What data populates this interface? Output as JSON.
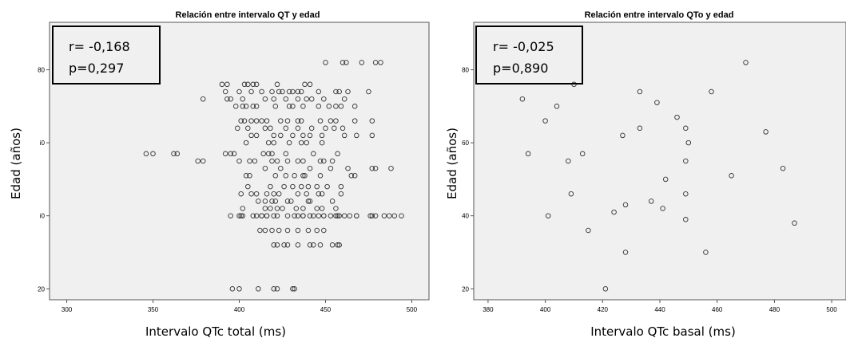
{
  "chart_data": [
    {
      "type": "scatter",
      "title": "Relación entre intervalo QT y edad",
      "xlabel": "Intervalo QTc total (ms)",
      "ylabel": "Edad (años)",
      "xlim": [
        290,
        510
      ],
      "ylim": [
        17,
        93
      ],
      "xticks": [
        300,
        350,
        400,
        450,
        500
      ],
      "yticks": [
        20,
        40,
        60,
        80
      ],
      "ytick_labels": [
        "20",
        "i0",
        "i0",
        "80"
      ],
      "grid": false,
      "annotation": {
        "r": "r= -0,168",
        "p": "p=0,297"
      },
      "points": [
        [
          471,
          82
        ],
        [
          479,
          82
        ],
        [
          482,
          82
        ],
        [
          460,
          82
        ],
        [
          462,
          82
        ],
        [
          450,
          82
        ],
        [
          390,
          76
        ],
        [
          393,
          76
        ],
        [
          403,
          76
        ],
        [
          405,
          76
        ],
        [
          408,
          76
        ],
        [
          410,
          76
        ],
        [
          422,
          76
        ],
        [
          438,
          76
        ],
        [
          441,
          76
        ],
        [
          392,
          74
        ],
        [
          400,
          74
        ],
        [
          407,
          74
        ],
        [
          413,
          74
        ],
        [
          419,
          74
        ],
        [
          423,
          74
        ],
        [
          425,
          74
        ],
        [
          429,
          74
        ],
        [
          431,
          74
        ],
        [
          434,
          74
        ],
        [
          436,
          74
        ],
        [
          446,
          74
        ],
        [
          456,
          74
        ],
        [
          458,
          74
        ],
        [
          463,
          74
        ],
        [
          475,
          74
        ],
        [
          379,
          72
        ],
        [
          393,
          72
        ],
        [
          395,
          72
        ],
        [
          402,
          72
        ],
        [
          415,
          72
        ],
        [
          420,
          72
        ],
        [
          427,
          72
        ],
        [
          434,
          72
        ],
        [
          439,
          72
        ],
        [
          442,
          72
        ],
        [
          449,
          72
        ],
        [
          461,
          72
        ],
        [
          398,
          70
        ],
        [
          402,
          70
        ],
        [
          404,
          70
        ],
        [
          408,
          70
        ],
        [
          410,
          70
        ],
        [
          421,
          70
        ],
        [
          429,
          70
        ],
        [
          431,
          70
        ],
        [
          437,
          70
        ],
        [
          446,
          70
        ],
        [
          452,
          70
        ],
        [
          456,
          70
        ],
        [
          459,
          70
        ],
        [
          467,
          70
        ],
        [
          401,
          66
        ],
        [
          403,
          66
        ],
        [
          407,
          66
        ],
        [
          410,
          66
        ],
        [
          413,
          66
        ],
        [
          416,
          66
        ],
        [
          424,
          66
        ],
        [
          428,
          66
        ],
        [
          434,
          66
        ],
        [
          436,
          66
        ],
        [
          447,
          66
        ],
        [
          453,
          66
        ],
        [
          456,
          66
        ],
        [
          467,
          66
        ],
        [
          477,
          66
        ],
        [
          399,
          64
        ],
        [
          405,
          64
        ],
        [
          415,
          64
        ],
        [
          418,
          64
        ],
        [
          427,
          64
        ],
        [
          434,
          64
        ],
        [
          442,
          64
        ],
        [
          450,
          64
        ],
        [
          455,
          64
        ],
        [
          460,
          64
        ],
        [
          407,
          62
        ],
        [
          410,
          62
        ],
        [
          420,
          62
        ],
        [
          424,
          62
        ],
        [
          431,
          62
        ],
        [
          437,
          62
        ],
        [
          441,
          62
        ],
        [
          448,
          62
        ],
        [
          461,
          62
        ],
        [
          468,
          62
        ],
        [
          477,
          62
        ],
        [
          404,
          60
        ],
        [
          417,
          60
        ],
        [
          420,
          60
        ],
        [
          429,
          60
        ],
        [
          436,
          60
        ],
        [
          439,
          60
        ],
        [
          448,
          60
        ],
        [
          346,
          57
        ],
        [
          350,
          57
        ],
        [
          362,
          57
        ],
        [
          364,
          57
        ],
        [
          392,
          57
        ],
        [
          395,
          57
        ],
        [
          397,
          57
        ],
        [
          414,
          57
        ],
        [
          417,
          57
        ],
        [
          419,
          57
        ],
        [
          427,
          57
        ],
        [
          443,
          57
        ],
        [
          457,
          57
        ],
        [
          376,
          55
        ],
        [
          379,
          55
        ],
        [
          400,
          55
        ],
        [
          406,
          55
        ],
        [
          409,
          55
        ],
        [
          419,
          55
        ],
        [
          422,
          55
        ],
        [
          428,
          55
        ],
        [
          434,
          55
        ],
        [
          437,
          55
        ],
        [
          447,
          55
        ],
        [
          449,
          55
        ],
        [
          454,
          55
        ],
        [
          415,
          53
        ],
        [
          424,
          53
        ],
        [
          441,
          53
        ],
        [
          453,
          53
        ],
        [
          463,
          53
        ],
        [
          477,
          53
        ],
        [
          479,
          53
        ],
        [
          488,
          53
        ],
        [
          404,
          51
        ],
        [
          406,
          51
        ],
        [
          421,
          51
        ],
        [
          427,
          51
        ],
        [
          432,
          51
        ],
        [
          437,
          51
        ],
        [
          438,
          51
        ],
        [
          447,
          51
        ],
        [
          465,
          51
        ],
        [
          467,
          51
        ],
        [
          405,
          48
        ],
        [
          418,
          48
        ],
        [
          426,
          48
        ],
        [
          431,
          48
        ],
        [
          436,
          48
        ],
        [
          440,
          48
        ],
        [
          445,
          48
        ],
        [
          451,
          48
        ],
        [
          459,
          48
        ],
        [
          401,
          46
        ],
        [
          407,
          46
        ],
        [
          410,
          46
        ],
        [
          416,
          46
        ],
        [
          420,
          46
        ],
        [
          423,
          46
        ],
        [
          434,
          46
        ],
        [
          439,
          46
        ],
        [
          446,
          46
        ],
        [
          448,
          46
        ],
        [
          459,
          46
        ],
        [
          411,
          44
        ],
        [
          415,
          44
        ],
        [
          419,
          44
        ],
        [
          421,
          44
        ],
        [
          428,
          44
        ],
        [
          430,
          44
        ],
        [
          440,
          44
        ],
        [
          441,
          44
        ],
        [
          454,
          44
        ],
        [
          402,
          42
        ],
        [
          415,
          42
        ],
        [
          418,
          42
        ],
        [
          422,
          42
        ],
        [
          425,
          42
        ],
        [
          433,
          42
        ],
        [
          437,
          42
        ],
        [
          445,
          42
        ],
        [
          448,
          42
        ],
        [
          456,
          42
        ],
        [
          395,
          40
        ],
        [
          400,
          40
        ],
        [
          401,
          40
        ],
        [
          402,
          40
        ],
        [
          413,
          40
        ],
        [
          416,
          40
        ],
        [
          420,
          40
        ],
        [
          422,
          40
        ],
        [
          432,
          40
        ],
        [
          437,
          40
        ],
        [
          443,
          40
        ],
        [
          449,
          40
        ],
        [
          456,
          40
        ],
        [
          458,
          40
        ],
        [
          464,
          40
        ],
        [
          468,
          40
        ],
        [
          477,
          40
        ],
        [
          479,
          40
        ],
        [
          412,
          36
        ],
        [
          415,
          36
        ],
        [
          419,
          36
        ],
        [
          423,
          36
        ],
        [
          428,
          36
        ],
        [
          434,
          36
        ],
        [
          440,
          36
        ],
        [
          445,
          36
        ],
        [
          449,
          36
        ],
        [
          420,
          32
        ],
        [
          422,
          32
        ],
        [
          426,
          32
        ],
        [
          428,
          32
        ],
        [
          434,
          32
        ],
        [
          441,
          32
        ],
        [
          443,
          32
        ],
        [
          447,
          32
        ],
        [
          454,
          32
        ],
        [
          457,
          32
        ],
        [
          458,
          32
        ],
        [
          408,
          40
        ],
        [
          410,
          40
        ],
        [
          413,
          40
        ],
        [
          416,
          40
        ],
        [
          428,
          40
        ],
        [
          434,
          40
        ],
        [
          437,
          40
        ],
        [
          441,
          40
        ],
        [
          446,
          40
        ],
        [
          449,
          40
        ],
        [
          453,
          40
        ],
        [
          457,
          40
        ],
        [
          461,
          40
        ],
        [
          468,
          40
        ],
        [
          476,
          40
        ],
        [
          484,
          40
        ],
        [
          487,
          40
        ],
        [
          490,
          40
        ],
        [
          494,
          40
        ],
        [
          396,
          20
        ],
        [
          400,
          20
        ],
        [
          411,
          20
        ],
        [
          420,
          20
        ],
        [
          422,
          20
        ],
        [
          431,
          20
        ],
        [
          432,
          20
        ]
      ]
    },
    {
      "type": "scatter",
      "title": "Relación entre intervalo QTo y edad",
      "xlabel": "Intervalo QTc basal (ms)",
      "ylabel": "Edad (años)",
      "xlim": [
        375,
        505
      ],
      "ylim": [
        17,
        93
      ],
      "xticks": [
        380,
        400,
        420,
        440,
        460,
        480,
        500
      ],
      "yticks": [
        20,
        40,
        60,
        80
      ],
      "grid": false,
      "annotation": {
        "r": "r= -0,025",
        "p": "p=0,890"
      },
      "points": [
        [
          470,
          82
        ],
        [
          410,
          76
        ],
        [
          433,
          74
        ],
        [
          458,
          74
        ],
        [
          392,
          72
        ],
        [
          439,
          71
        ],
        [
          404,
          70
        ],
        [
          400,
          66
        ],
        [
          446,
          67
        ],
        [
          433,
          64
        ],
        [
          449,
          64
        ],
        [
          477,
          63
        ],
        [
          427,
          62
        ],
        [
          450,
          60
        ],
        [
          394,
          57
        ],
        [
          413,
          57
        ],
        [
          408,
          55
        ],
        [
          449,
          55
        ],
        [
          483,
          53
        ],
        [
          465,
          51
        ],
        [
          442,
          50
        ],
        [
          409,
          46
        ],
        [
          449,
          46
        ],
        [
          437,
          44
        ],
        [
          428,
          43
        ],
        [
          441,
          42
        ],
        [
          424,
          41
        ],
        [
          401,
          40
        ],
        [
          449,
          39
        ],
        [
          487,
          38
        ],
        [
          415,
          36
        ],
        [
          428,
          30
        ],
        [
          456,
          30
        ],
        [
          421,
          20
        ]
      ]
    }
  ]
}
